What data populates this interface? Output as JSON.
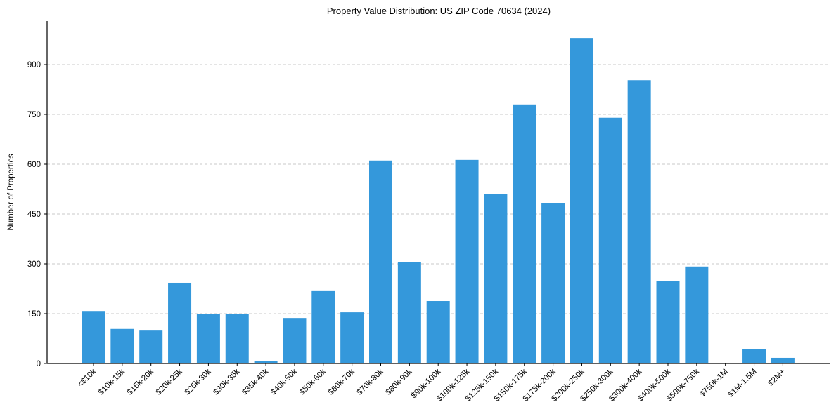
{
  "chart_data": {
    "type": "bar",
    "title": "Property Value Distribution: US ZIP Code 70634 (2024)",
    "xlabel": "",
    "ylabel": "Number of Properties",
    "ylim": [
      0,
      1030
    ],
    "yticks": [
      0,
      150,
      300,
      450,
      600,
      750,
      900
    ],
    "grid": {
      "y": true,
      "x": false,
      "style": "dashed"
    },
    "legend": null,
    "bar_color": "#3498db",
    "categories": [
      "<$10k",
      "$10k-15k",
      "$15k-20k",
      "$20k-25k",
      "$25k-30k",
      "$30k-35k",
      "$35k-40k",
      "$40k-50k",
      "$50k-60k",
      "$60k-70k",
      "$70k-80k",
      "$80k-90k",
      "$90k-100k",
      "$100k-125k",
      "$125k-150k",
      "$150k-175k",
      "$175k-200k",
      "$200k-250k",
      "$250k-300k",
      "$300k-400k",
      "$400k-500k",
      "$500k-750k",
      "$750k-1M",
      "$1M-1.5M",
      "$2M+"
    ],
    "values": [
      158,
      104,
      99,
      243,
      148,
      150,
      8,
      137,
      220,
      154,
      611,
      306,
      188,
      613,
      511,
      780,
      482,
      980,
      740,
      853,
      249,
      292,
      2,
      44,
      17
    ]
  }
}
